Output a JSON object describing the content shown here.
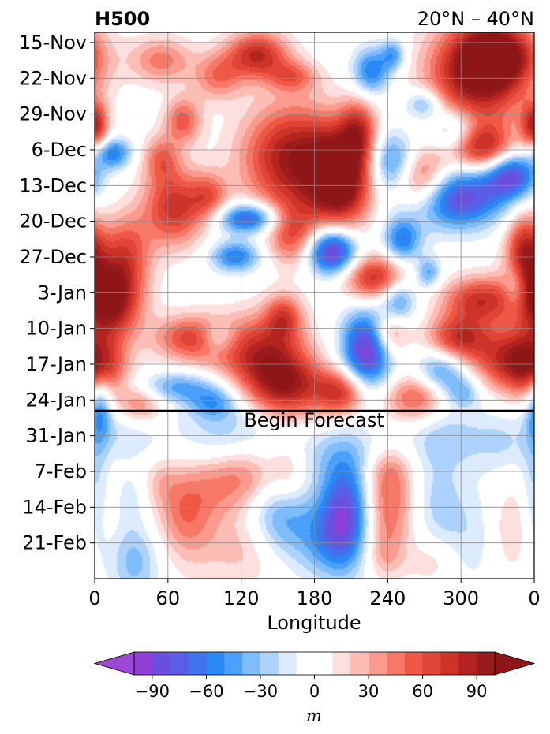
{
  "chart_data": {
    "type": "heatmap",
    "title_left": "H500",
    "title_right": "20°N – 40°N",
    "xlabel": "Longitude",
    "x_ticks": [
      "0",
      "60",
      "120",
      "180",
      "240",
      "300",
      "0"
    ],
    "x_tick_values": [
      0,
      60,
      120,
      180,
      240,
      300,
      360
    ],
    "x_range": [
      0,
      360
    ],
    "y_ticks": [
      "15-Nov",
      "22-Nov",
      "29-Nov",
      "6-Dec",
      "13-Dec",
      "20-Dec",
      "27-Dec",
      "3-Jan",
      "10-Jan",
      "17-Jan",
      "24-Jan",
      "31-Jan",
      "7-Feb",
      "14-Feb",
      "21-Feb"
    ],
    "y_range_days": [
      0,
      107
    ],
    "forecast_start": "22-Jan",
    "annotation": "Begin Forecast",
    "colorbar": {
      "label": "m",
      "ticks": [
        "−90",
        "−60",
        "−30",
        "0",
        "30",
        "60",
        "90"
      ],
      "tick_values": [
        -90,
        -60,
        -30,
        0,
        30,
        60,
        90
      ],
      "range": [
        -105,
        105
      ],
      "step": 10,
      "extend": "both",
      "colors": [
        "#8d3fd6",
        "#6a4fde",
        "#5a5ee6",
        "#3f73ee",
        "#2a88f5",
        "#4aa0fa",
        "#7dbcfd",
        "#acd2fd",
        "#dcebfd",
        "#ffffff",
        "#ffffff",
        "#fde0dd",
        "#fcbdb5",
        "#fa9b8d",
        "#f67867",
        "#ef5847",
        "#e04436",
        "#cc3329",
        "#b4241f",
        "#991b1b"
      ],
      "under_color": "#9b47d8",
      "over_color": "#8e1616"
    },
    "grid": true,
    "note": "Longitude–time (Hovmöller) anomaly field; smooth blobs reconstructed approximately from the image."
  }
}
